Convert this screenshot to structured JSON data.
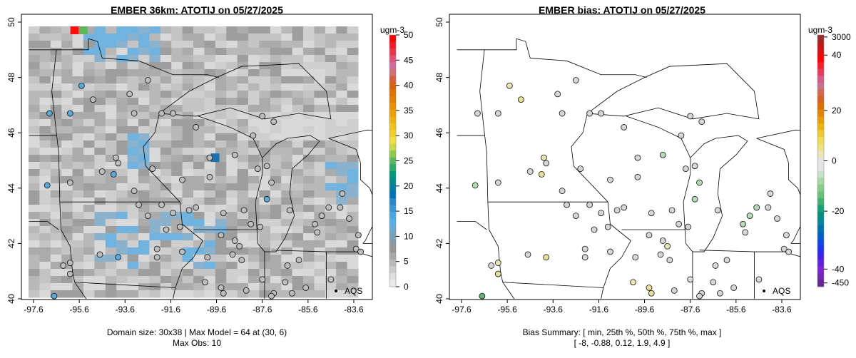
{
  "chart_data": [
    {
      "type": "heatmap",
      "title": "EMBER 36km: ATOTIJ on 05/27/2025",
      "xlabel": "",
      "ylabel": "",
      "x_ticks": [
        "-97.6",
        "-95.6",
        "-93.6",
        "-91.6",
        "-89.6",
        "-87.6",
        "-85.6",
        "-83.6"
      ],
      "y_ticks": [
        "40",
        "42",
        "44",
        "46",
        "48",
        "50"
      ],
      "xlim": [
        -97.8,
        -83.0
      ],
      "ylim": [
        40,
        50
      ],
      "colorbar": {
        "unit": "ugm-3",
        "ticks": [
          "0",
          "5",
          "10",
          "15",
          "20",
          "25",
          "30",
          "35",
          "40",
          "45",
          "50"
        ],
        "range": [
          0,
          50
        ]
      },
      "label_aqs": "AQS",
      "footer": [
        "Domain size: 30x38 | Max Model = 64 at (30, 6)",
        "Max Obs: 10"
      ]
    },
    {
      "type": "scatter",
      "title": "EMBER bias: ATOTIJ on 05/27/2025",
      "x_ticks": [
        "-97.6",
        "-95.6",
        "-93.6",
        "-91.6",
        "-89.6",
        "-87.6",
        "-85.6",
        "-83.6"
      ],
      "y_ticks": [
        "40",
        "42",
        "44",
        "46",
        "48",
        "50"
      ],
      "xlim": [
        -97.8,
        -83.0
      ],
      "ylim": [
        40,
        50
      ],
      "colorbar": {
        "unit": "ugm-3",
        "ticks": [
          "3000",
          "40",
          "20",
          "0",
          "-20",
          "-40",
          "-450"
        ]
      },
      "label_aqs": "AQS",
      "footer": [
        "Bias Summary: [ min, 25th %, 50th %, 75th %, max ]",
        "[ -8,   -0.88,   0.12,   1.9,   4.9 ]"
      ]
    }
  ],
  "stations": [
    [
      -95.5,
      47.7,
      9,
      1
    ],
    [
      -96.0,
      46.7,
      8,
      0
    ],
    [
      -96.9,
      46.7,
      9,
      0
    ],
    [
      -95.0,
      47.2,
      4,
      4
    ],
    [
      -93.4,
      47.4,
      4,
      0
    ],
    [
      -92.6,
      47.9,
      4,
      0
    ],
    [
      -93.2,
      46.7,
      4,
      0
    ],
    [
      -92.0,
      46.7,
      4,
      0
    ],
    [
      -90.5,
      46.2,
      4,
      0
    ],
    [
      -91.5,
      46.7,
      4,
      0
    ],
    [
      -88.0,
      45.9,
      4,
      0
    ],
    [
      -87.6,
      46.6,
      4,
      0
    ],
    [
      -87.1,
      46.4,
      4,
      0
    ],
    [
      -97.0,
      44.1,
      9,
      -3
    ],
    [
      -96.0,
      44.2,
      4,
      0
    ],
    [
      -94.6,
      44.6,
      4,
      0
    ],
    [
      -94.1,
      44.5,
      9,
      4
    ],
    [
      -93.9,
      44.9,
      4,
      0
    ],
    [
      -94.0,
      45.1,
      4,
      1
    ],
    [
      -93.2,
      43.9,
      4,
      0
    ],
    [
      -92.4,
      44.7,
      4,
      0
    ],
    [
      -92.0,
      43.4,
      4,
      0
    ],
    [
      -91.1,
      44.3,
      4,
      0
    ],
    [
      -89.9,
      44.4,
      4,
      0
    ],
    [
      -88.8,
      45.2,
      4,
      -1
    ],
    [
      -89.9,
      45.1,
      4,
      0
    ],
    [
      -90.5,
      43.3,
      4,
      0
    ],
    [
      -90.8,
      43.2,
      4,
      0
    ],
    [
      -91.5,
      43.1,
      4,
      0
    ],
    [
      -92.6,
      43.0,
      4,
      0
    ],
    [
      -93.0,
      43.4,
      4,
      0
    ],
    [
      -91.8,
      42.5,
      4,
      0
    ],
    [
      -91.2,
      42.6,
      4,
      0
    ],
    [
      -89.4,
      42.3,
      4,
      0
    ],
    [
      -89.3,
      43.1,
      4,
      0
    ],
    [
      -88.4,
      43.2,
      4,
      0
    ],
    [
      -87.8,
      44.7,
      4,
      0
    ],
    [
      -87.4,
      44.8,
      4,
      0
    ],
    [
      -87.4,
      43.6,
      9,
      -2
    ],
    [
      -87.2,
      44.2,
      4,
      -1
    ],
    [
      -88.1,
      42.7,
      4,
      0
    ],
    [
      -88.8,
      42.1,
      4,
      0
    ],
    [
      -88.6,
      41.9,
      4,
      2
    ],
    [
      -88.9,
      41.6,
      4,
      0
    ],
    [
      -90.0,
      41.5,
      4,
      0
    ],
    [
      -91.1,
      41.7,
      4,
      0
    ],
    [
      -92.2,
      41.8,
      4,
      0
    ],
    [
      -92.2,
      41.5,
      4,
      0
    ],
    [
      -93.9,
      41.5,
      9,
      4
    ],
    [
      -94.7,
      41.6,
      4,
      0
    ],
    [
      -96.0,
      41.3,
      4,
      2
    ],
    [
      -96.0,
      40.9,
      4,
      3
    ],
    [
      -96.3,
      41.2,
      4,
      0
    ],
    [
      -96.7,
      40.1,
      9,
      -5
    ],
    [
      -90.1,
      40.6,
      4,
      2
    ],
    [
      -89.4,
      40.4,
      4,
      3
    ],
    [
      -89.3,
      40.2,
      4,
      3
    ],
    [
      -87.6,
      40.7,
      4,
      0
    ],
    [
      -88.3,
      40.3,
      4,
      0
    ],
    [
      -86.6,
      40.6,
      4,
      0
    ],
    [
      -86.5,
      41.2,
      4,
      0
    ],
    [
      -86.0,
      41.4,
      4,
      0
    ],
    [
      -85.7,
      40.4,
      4,
      0
    ],
    [
      -87.1,
      40.2,
      4,
      0
    ],
    [
      -87.2,
      40.1,
      4,
      0
    ],
    [
      -86.3,
      40.2,
      4,
      0
    ],
    [
      -84.6,
      40.7,
      4,
      0
    ],
    [
      -85.2,
      42.4,
      4,
      0
    ],
    [
      -85.3,
      42.7,
      4,
      -1
    ],
    [
      -84.7,
      43.3,
      4,
      -2
    ],
    [
      -84.2,
      43.3,
      4,
      0
    ],
    [
      -83.4,
      42.3,
      4,
      0
    ],
    [
      -83.5,
      41.8,
      4,
      0
    ],
    [
      -83.3,
      41.7,
      4,
      0
    ],
    [
      -83.8,
      42.9,
      4,
      0
    ],
    [
      -84.1,
      43.8,
      4,
      0
    ],
    [
      -85.0,
      43.0,
      4,
      -2
    ],
    [
      -87.7,
      42.6,
      4,
      0
    ],
    [
      -86.4,
      43.2,
      4,
      0
    ],
    [
      -88.5,
      41.4,
      4,
      0
    ]
  ]
}
